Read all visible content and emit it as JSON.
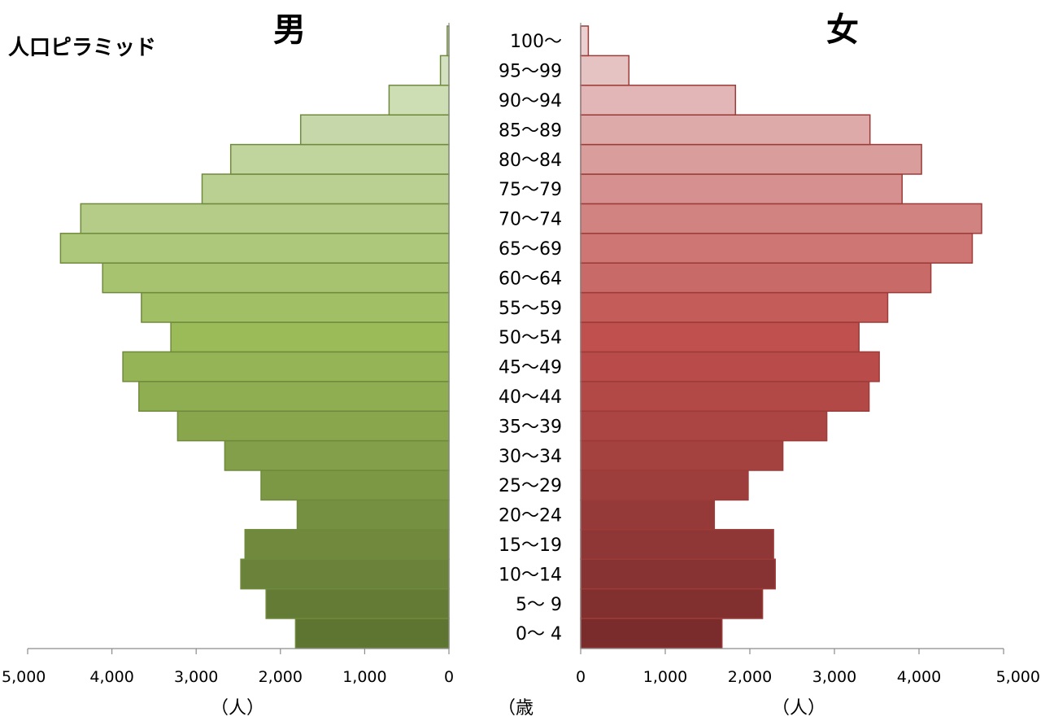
{
  "title": "人口ピラミッド",
  "chart_data": {
    "type": "bar",
    "title": "人口ピラミッド",
    "categories": [
      "0〜 4",
      "5〜 9",
      "10〜14",
      "15〜19",
      "20〜24",
      "25〜29",
      "30〜34",
      "35〜39",
      "40〜44",
      "45〜49",
      "50〜54",
      "55〜59",
      "60〜64",
      "65〜69",
      "70〜74",
      "75〜79",
      "80〜84",
      "85〜89",
      "90〜94",
      "95〜99",
      "100〜"
    ],
    "series": [
      {
        "name": "男",
        "values": [
          1820,
          2170,
          2470,
          2420,
          1800,
          2230,
          2660,
          3220,
          3680,
          3870,
          3300,
          3650,
          4110,
          4610,
          4370,
          2930,
          2590,
          1760,
          710,
          100,
          20
        ]
      },
      {
        "name": "女",
        "values": [
          1670,
          2150,
          2300,
          2280,
          1580,
          1980,
          2390,
          2910,
          3410,
          3530,
          3290,
          3630,
          4140,
          4630,
          4740,
          3800,
          4030,
          3420,
          1830,
          570,
          90
        ]
      }
    ],
    "xlim": [
      0,
      5000
    ],
    "ticks": [
      "0",
      "1,000",
      "2,000",
      "3,000",
      "4,000",
      "5,000"
    ],
    "male_label": "男",
    "female_label": "女",
    "xlabel": "（人）",
    "age_label": "（歳",
    "colors": {
      "male_top": "#d9e5cb",
      "male_mid": "#9bbb59",
      "male_bottom": "#5e7431",
      "male_stroke": "#6f8a3c",
      "female_top": "#ead0d0",
      "female_mid": "#c0504d",
      "female_bottom": "#7a2c2c",
      "female_stroke": "#9c3b38"
    }
  }
}
